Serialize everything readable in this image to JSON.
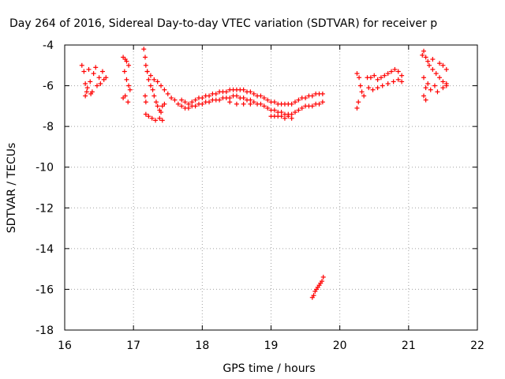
{
  "chart_data": {
    "type": "scatter",
    "title": "Day 264 of 2016, Sidereal Day-to-day VTEC variation (SDTVAR) for receiver p",
    "xlabel": "GPS time / hours",
    "ylabel": "SDTVAR / TECUs",
    "xlim": [
      16,
      22
    ],
    "ylim": [
      -18,
      -4
    ],
    "xticks": [
      "16",
      "17",
      "18",
      "19",
      "20",
      "21",
      "22"
    ],
    "yticks": [
      "-4",
      "-6",
      "-8",
      "-10",
      "-12",
      "-14",
      "-16",
      "-18"
    ],
    "grid": true,
    "legend": "none",
    "marker": "+",
    "color": "#ff0000",
    "series": [
      {
        "points": [
          [
            16.25,
            -5.0
          ],
          [
            16.28,
            -5.3
          ],
          [
            16.3,
            -5.9
          ],
          [
            16.32,
            -6.3
          ],
          [
            16.33,
            -6.1
          ],
          [
            16.35,
            -5.2
          ],
          [
            16.37,
            -5.8
          ],
          [
            16.4,
            -6.3
          ],
          [
            16.42,
            -5.4
          ],
          [
            16.45,
            -5.1
          ],
          [
            16.47,
            -6.0
          ],
          [
            16.5,
            -5.6
          ],
          [
            16.52,
            -5.9
          ],
          [
            16.55,
            -5.3
          ],
          [
            16.57,
            -5.7
          ],
          [
            16.6,
            -5.6
          ],
          [
            16.38,
            -6.4
          ],
          [
            16.3,
            -6.5
          ],
          [
            16.85,
            -4.6
          ],
          [
            16.88,
            -4.7
          ],
          [
            16.9,
            -4.8
          ],
          [
            16.93,
            -5.0
          ],
          [
            16.87,
            -5.3
          ],
          [
            16.9,
            -5.7
          ],
          [
            16.93,
            -6.0
          ],
          [
            16.95,
            -6.2
          ],
          [
            16.88,
            -6.5
          ],
          [
            16.92,
            -6.8
          ],
          [
            16.85,
            -6.6
          ],
          [
            17.15,
            -4.2
          ],
          [
            17.17,
            -4.6
          ],
          [
            17.18,
            -5.0
          ],
          [
            17.2,
            -5.3
          ],
          [
            17.22,
            -5.7
          ],
          [
            17.25,
            -6.0
          ],
          [
            17.28,
            -6.2
          ],
          [
            17.3,
            -6.5
          ],
          [
            17.33,
            -6.8
          ],
          [
            17.35,
            -7.0
          ],
          [
            17.38,
            -7.2
          ],
          [
            17.4,
            -7.3
          ],
          [
            17.42,
            -7.0
          ],
          [
            17.45,
            -6.9
          ],
          [
            17.18,
            -7.4
          ],
          [
            17.22,
            -7.5
          ],
          [
            17.27,
            -7.6
          ],
          [
            17.32,
            -7.7
          ],
          [
            17.38,
            -7.6
          ],
          [
            17.42,
            -7.7
          ],
          [
            17.17,
            -6.5
          ],
          [
            17.18,
            -6.8
          ],
          [
            17.2,
            -5.3
          ],
          [
            17.25,
            -5.5
          ],
          [
            17.3,
            -5.7
          ],
          [
            17.35,
            -5.8
          ],
          [
            17.4,
            -6.0
          ],
          [
            17.45,
            -6.2
          ],
          [
            17.5,
            -6.4
          ],
          [
            17.55,
            -6.6
          ],
          [
            17.6,
            -6.7
          ],
          [
            17.65,
            -6.9
          ],
          [
            17.7,
            -6.7
          ],
          [
            17.75,
            -6.8
          ],
          [
            17.8,
            -6.9
          ],
          [
            17.85,
            -6.8
          ],
          [
            17.9,
            -6.7
          ],
          [
            17.95,
            -6.6
          ],
          [
            18.0,
            -6.6
          ],
          [
            18.05,
            -6.5
          ],
          [
            18.1,
            -6.5
          ],
          [
            18.15,
            -6.4
          ],
          [
            18.2,
            -6.4
          ],
          [
            18.25,
            -6.3
          ],
          [
            18.3,
            -6.3
          ],
          [
            18.35,
            -6.3
          ],
          [
            18.4,
            -6.2
          ],
          [
            18.45,
            -6.2
          ],
          [
            18.5,
            -6.2
          ],
          [
            18.55,
            -6.2
          ],
          [
            18.6,
            -6.2
          ],
          [
            18.65,
            -6.3
          ],
          [
            18.7,
            -6.3
          ],
          [
            18.75,
            -6.4
          ],
          [
            18.8,
            -6.5
          ],
          [
            18.85,
            -6.5
          ],
          [
            18.9,
            -6.6
          ],
          [
            18.95,
            -6.7
          ],
          [
            19.0,
            -6.8
          ],
          [
            19.05,
            -6.8
          ],
          [
            19.1,
            -6.9
          ],
          [
            19.15,
            -6.9
          ],
          [
            19.2,
            -6.9
          ],
          [
            19.25,
            -6.9
          ],
          [
            19.3,
            -6.9
          ],
          [
            19.35,
            -6.8
          ],
          [
            19.4,
            -6.7
          ],
          [
            19.45,
            -6.6
          ],
          [
            19.5,
            -6.6
          ],
          [
            19.55,
            -6.5
          ],
          [
            19.6,
            -6.5
          ],
          [
            19.65,
            -6.4
          ],
          [
            19.7,
            -6.4
          ],
          [
            19.75,
            -6.4
          ],
          [
            17.7,
            -7.0
          ],
          [
            17.75,
            -7.1
          ],
          [
            17.8,
            -7.1
          ],
          [
            17.85,
            -7.0
          ],
          [
            17.9,
            -7.0
          ],
          [
            17.95,
            -6.9
          ],
          [
            18.0,
            -6.9
          ],
          [
            18.05,
            -6.8
          ],
          [
            18.1,
            -6.8
          ],
          [
            18.15,
            -6.7
          ],
          [
            18.2,
            -6.7
          ],
          [
            18.25,
            -6.7
          ],
          [
            18.3,
            -6.6
          ],
          [
            18.35,
            -6.6
          ],
          [
            18.4,
            -6.6
          ],
          [
            18.45,
            -6.5
          ],
          [
            18.5,
            -6.5
          ],
          [
            18.55,
            -6.6
          ],
          [
            18.6,
            -6.6
          ],
          [
            18.65,
            -6.7
          ],
          [
            18.7,
            -6.7
          ],
          [
            18.75,
            -6.8
          ],
          [
            18.8,
            -6.9
          ],
          [
            18.85,
            -6.9
          ],
          [
            18.9,
            -7.0
          ],
          [
            18.95,
            -7.1
          ],
          [
            19.0,
            -7.2
          ],
          [
            19.05,
            -7.2
          ],
          [
            19.1,
            -7.3
          ],
          [
            19.15,
            -7.3
          ],
          [
            19.2,
            -7.4
          ],
          [
            19.25,
            -7.4
          ],
          [
            19.3,
            -7.4
          ],
          [
            19.35,
            -7.3
          ],
          [
            19.4,
            -7.2
          ],
          [
            19.45,
            -7.1
          ],
          [
            19.5,
            -7.0
          ],
          [
            19.55,
            -7.0
          ],
          [
            19.6,
            -7.0
          ],
          [
            19.65,
            -6.9
          ],
          [
            19.7,
            -6.9
          ],
          [
            19.75,
            -6.8
          ],
          [
            19.0,
            -7.5
          ],
          [
            19.05,
            -7.5
          ],
          [
            19.1,
            -7.5
          ],
          [
            19.15,
            -7.5
          ],
          [
            19.2,
            -7.6
          ],
          [
            19.25,
            -7.5
          ],
          [
            19.3,
            -7.6
          ],
          [
            18.4,
            -6.8
          ],
          [
            18.5,
            -6.9
          ],
          [
            18.6,
            -6.9
          ],
          [
            18.7,
            -6.9
          ],
          [
            19.6,
            -16.4
          ],
          [
            19.62,
            -16.3
          ],
          [
            19.64,
            -16.1
          ],
          [
            19.66,
            -16.0
          ],
          [
            19.68,
            -15.9
          ],
          [
            19.7,
            -15.8
          ],
          [
            19.72,
            -15.7
          ],
          [
            19.74,
            -15.6
          ],
          [
            19.76,
            -15.4
          ],
          [
            20.25,
            -5.4
          ],
          [
            20.28,
            -5.6
          ],
          [
            20.3,
            -6.0
          ],
          [
            20.32,
            -6.3
          ],
          [
            20.35,
            -6.5
          ],
          [
            20.27,
            -6.8
          ],
          [
            20.25,
            -7.1
          ],
          [
            20.4,
            -5.6
          ],
          [
            20.45,
            -5.6
          ],
          [
            20.5,
            -5.5
          ],
          [
            20.55,
            -5.7
          ],
          [
            20.6,
            -5.6
          ],
          [
            20.65,
            -5.5
          ],
          [
            20.7,
            -5.4
          ],
          [
            20.75,
            -5.3
          ],
          [
            20.8,
            -5.2
          ],
          [
            20.85,
            -5.3
          ],
          [
            20.9,
            -5.5
          ],
          [
            20.42,
            -6.1
          ],
          [
            20.48,
            -6.2
          ],
          [
            20.55,
            -6.1
          ],
          [
            20.62,
            -6.0
          ],
          [
            20.7,
            -5.9
          ],
          [
            20.78,
            -5.8
          ],
          [
            20.85,
            -5.7
          ],
          [
            20.9,
            -5.8
          ],
          [
            21.2,
            -4.5
          ],
          [
            21.22,
            -4.3
          ],
          [
            21.25,
            -4.6
          ],
          [
            21.28,
            -4.8
          ],
          [
            21.3,
            -5.0
          ],
          [
            21.35,
            -5.2
          ],
          [
            21.4,
            -5.4
          ],
          [
            21.45,
            -5.6
          ],
          [
            21.5,
            -5.8
          ],
          [
            21.55,
            -5.9
          ],
          [
            21.22,
            -5.6
          ],
          [
            21.25,
            -6.1
          ],
          [
            21.22,
            -6.5
          ],
          [
            21.28,
            -5.9
          ],
          [
            21.32,
            -6.2
          ],
          [
            21.38,
            -6.0
          ],
          [
            21.42,
            -6.3
          ],
          [
            21.5,
            -6.1
          ],
          [
            21.55,
            -6.0
          ],
          [
            21.35,
            -4.7
          ],
          [
            21.45,
            -4.9
          ],
          [
            21.5,
            -5.0
          ],
          [
            21.55,
            -5.2
          ],
          [
            21.25,
            -6.7
          ]
        ]
      }
    ]
  }
}
